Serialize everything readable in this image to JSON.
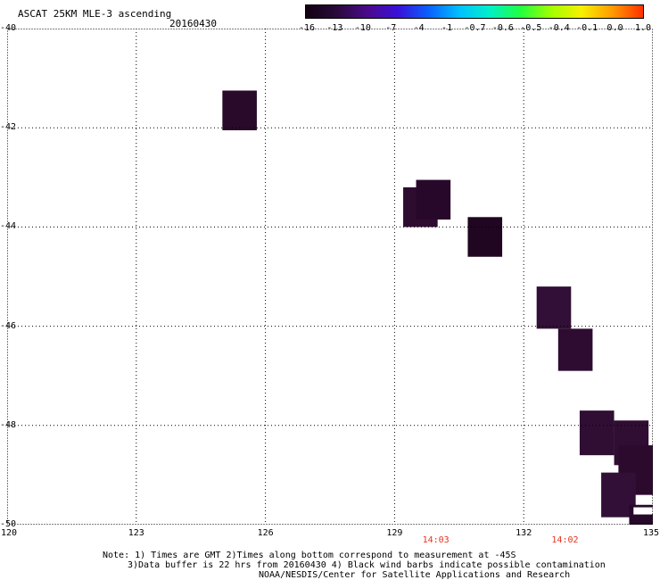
{
  "header": {
    "title": "ASCAT 25KM MLE-3 ascending",
    "date": "20160430"
  },
  "colorbar": {
    "ticks": [
      "-16",
      "-13",
      "-10",
      "-7",
      "-4",
      "-1",
      "-0.7",
      "-0.6",
      "-0.5",
      "-0.4",
      "-0.1",
      "0.0",
      "1.0"
    ],
    "colors": [
      "#120012",
      "#2a0a3a",
      "#4b0a8c",
      "#3a10d8",
      "#0a60ff",
      "#00c0ff",
      "#00f0c8",
      "#20ff40",
      "#a0ff00",
      "#f8f000",
      "#ff9a00",
      "#ff3000"
    ]
  },
  "map": {
    "lat_labels": [
      "-40",
      "-42",
      "-44",
      "-46",
      "-48",
      "-50"
    ],
    "lon_labels": [
      "120",
      "123",
      "126",
      "129",
      "132",
      "135"
    ],
    "time_labels": [
      {
        "lon": 130,
        "text": "14:03"
      },
      {
        "lon": 133,
        "text": "14:02"
      }
    ],
    "cells": [
      {
        "lon0": 125.0,
        "lon1": 125.8,
        "lat0": -41.25,
        "lat1": -42.05,
        "color": "#2a0a2a"
      },
      {
        "lon0": 129.2,
        "lon1": 130.0,
        "lat0": -43.2,
        "lat1": -44.0,
        "color": "#2e0c30"
      },
      {
        "lon0": 129.5,
        "lon1": 130.3,
        "lat0": -43.05,
        "lat1": -43.85,
        "color": "#28082a"
      },
      {
        "lon0": 130.7,
        "lon1": 131.5,
        "lat0": -43.8,
        "lat1": -44.6,
        "color": "#200620"
      },
      {
        "lon0": 132.3,
        "lon1": 133.1,
        "lat0": -45.2,
        "lat1": -46.05,
        "color": "#320f36"
      },
      {
        "lon0": 132.8,
        "lon1": 133.6,
        "lat0": -46.05,
        "lat1": -46.9,
        "color": "#2e0c32"
      },
      {
        "lon0": 133.3,
        "lon1": 134.1,
        "lat0": -47.7,
        "lat1": -48.6,
        "color": "#300e34"
      },
      {
        "lon0": 134.1,
        "lon1": 134.9,
        "lat0": -47.9,
        "lat1": -48.8,
        "color": "#300d33"
      },
      {
        "lon0": 134.2,
        "lon1": 135.0,
        "lat0": -48.4,
        "lat1": -49.4,
        "color": "#2c0a2e"
      },
      {
        "lon0": 133.8,
        "lon1": 134.6,
        "lat0": -48.95,
        "lat1": -49.85,
        "color": "#320f36"
      },
      {
        "lon0": 134.45,
        "lon1": 135.0,
        "lat0": -49.6,
        "lat1": -50.1,
        "color": "#26082a"
      }
    ]
  },
  "footer": {
    "note_line1": "Note: 1) Times are GMT 2)Times along bottom correspond to measurement at -45S",
    "note_line2": "3)Data buffer is 22 hrs from 20160430 4) Black wind barbs indicate possible contamination",
    "credit": "NOAA/NESDIS/Center for Satellite Applications and Research"
  }
}
